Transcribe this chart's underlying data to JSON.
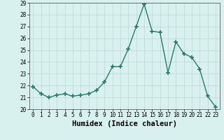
{
  "x": [
    0,
    1,
    2,
    3,
    4,
    5,
    6,
    7,
    8,
    9,
    10,
    11,
    12,
    13,
    14,
    15,
    16,
    17,
    18,
    19,
    20,
    21,
    22,
    23
  ],
  "y": [
    21.9,
    21.3,
    21.0,
    21.2,
    21.3,
    21.1,
    21.2,
    21.3,
    21.6,
    22.3,
    23.6,
    23.6,
    25.1,
    27.0,
    28.9,
    26.6,
    26.5,
    23.1,
    25.7,
    24.7,
    24.4,
    23.4,
    21.1,
    20.2
  ],
  "line_color": "#2a7a6a",
  "marker": "+",
  "marker_size": 4,
  "marker_linewidth": 1.2,
  "bg_color": "#d8f0ee",
  "grid_color": "#c0dbd8",
  "xlabel": "Humidex (Indice chaleur)",
  "ylim": [
    20,
    29
  ],
  "yticks": [
    20,
    21,
    22,
    23,
    24,
    25,
    26,
    27,
    28,
    29
  ],
  "xticks": [
    0,
    1,
    2,
    3,
    4,
    5,
    6,
    7,
    8,
    9,
    10,
    11,
    12,
    13,
    14,
    15,
    16,
    17,
    18,
    19,
    20,
    21,
    22,
    23
  ],
  "tick_fontsize": 5.5,
  "xlabel_fontsize": 7.5,
  "linewidth": 1.0
}
